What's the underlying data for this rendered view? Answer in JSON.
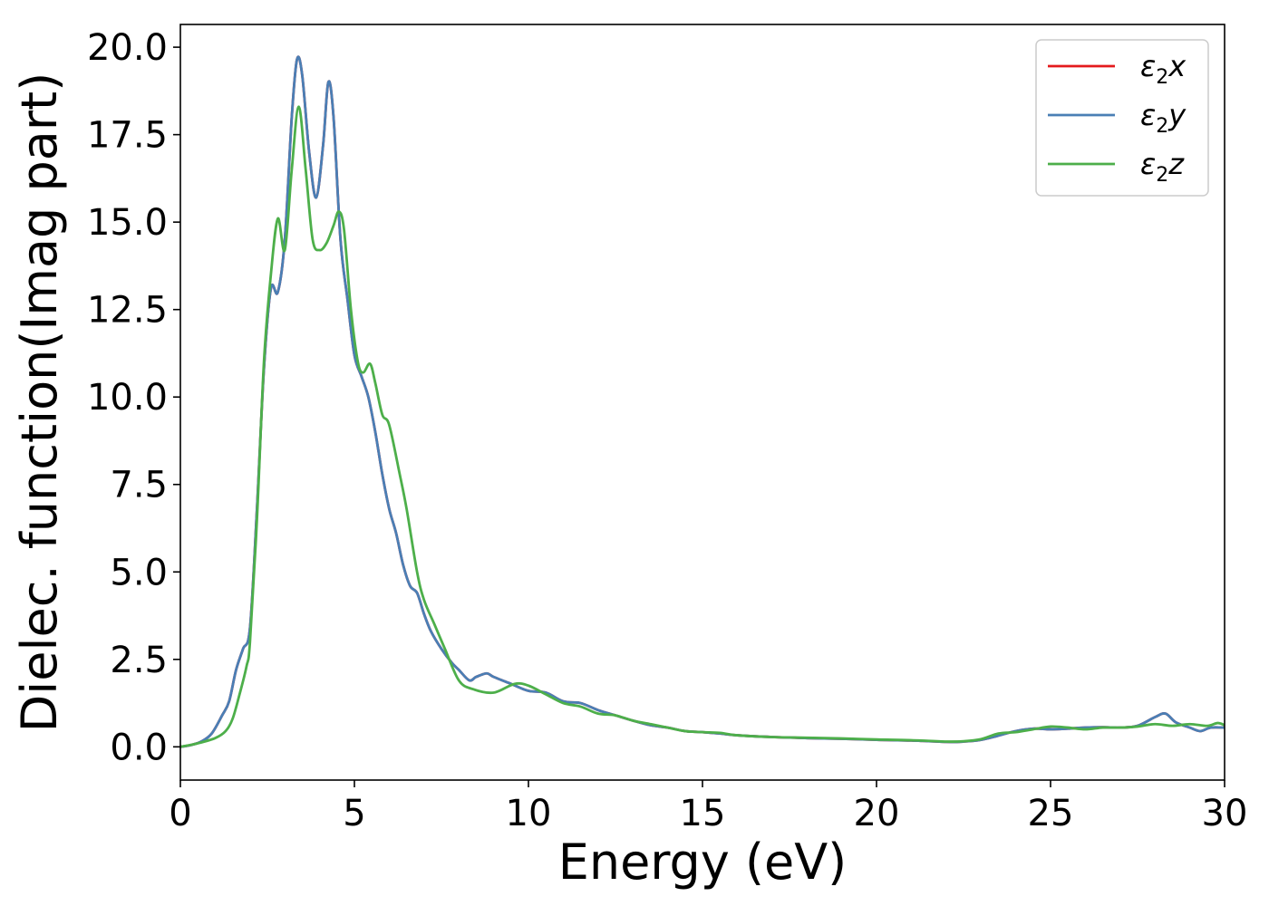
{
  "chart_data": {
    "type": "line",
    "title": "",
    "xlabel": "Energy (eV)",
    "ylabel": "Dielec. function(Imag part)",
    "xlim": [
      0,
      30
    ],
    "ylim": [
      -0.95,
      20.65
    ],
    "xticks": [
      0,
      5,
      10,
      15,
      20,
      25,
      30
    ],
    "xtick_labels": [
      "0",
      "5",
      "10",
      "15",
      "20",
      "25",
      "30"
    ],
    "yticks": [
      0,
      2.5,
      5,
      7.5,
      10,
      12.5,
      15,
      17.5,
      20
    ],
    "ytick_labels": [
      "0.0",
      "2.5",
      "5.0",
      "7.5",
      "10.0",
      "12.5",
      "15.0",
      "17.5",
      "20.0"
    ],
    "grid": false,
    "legend_position": "top-right",
    "series": [
      {
        "name": "ε2x",
        "legend_symbol": "ε",
        "legend_sub": "2",
        "legend_var": "x",
        "color": "#e41a1c",
        "points": [
          [
            0,
            0
          ],
          [
            0.3,
            0.05
          ],
          [
            0.6,
            0.15
          ],
          [
            0.9,
            0.38
          ],
          [
            1.2,
            0.9
          ],
          [
            1.4,
            1.3
          ],
          [
            1.6,
            2.2
          ],
          [
            1.8,
            2.8
          ],
          [
            2.0,
            3.4
          ],
          [
            2.2,
            6.8
          ],
          [
            2.4,
            10.8
          ],
          [
            2.6,
            13.1
          ],
          [
            2.8,
            13.0
          ],
          [
            3.0,
            14.5
          ],
          [
            3.2,
            18.0
          ],
          [
            3.35,
            19.65
          ],
          [
            3.5,
            19.2
          ],
          [
            3.7,
            17.0
          ],
          [
            3.9,
            15.7
          ],
          [
            4.1,
            17.2
          ],
          [
            4.25,
            19.0
          ],
          [
            4.4,
            18.0
          ],
          [
            4.6,
            14.5
          ],
          [
            4.8,
            12.8
          ],
          [
            5.0,
            11.2
          ],
          [
            5.2,
            10.6
          ],
          [
            5.4,
            10.0
          ],
          [
            5.6,
            9.0
          ],
          [
            5.8,
            7.8
          ],
          [
            6.0,
            6.8
          ],
          [
            6.2,
            6.1
          ],
          [
            6.4,
            5.2
          ],
          [
            6.6,
            4.6
          ],
          [
            6.8,
            4.4
          ],
          [
            7.0,
            3.8
          ],
          [
            7.2,
            3.3
          ],
          [
            7.5,
            2.8
          ],
          [
            7.8,
            2.4
          ],
          [
            8.0,
            2.2
          ],
          [
            8.3,
            1.9
          ],
          [
            8.5,
            2.0
          ],
          [
            8.8,
            2.1
          ],
          [
            9.0,
            2.0
          ],
          [
            9.5,
            1.8
          ],
          [
            10.0,
            1.6
          ],
          [
            10.5,
            1.55
          ],
          [
            11.0,
            1.3
          ],
          [
            11.5,
            1.25
          ],
          [
            12.0,
            1.05
          ],
          [
            12.5,
            0.9
          ],
          [
            13.0,
            0.75
          ],
          [
            13.5,
            0.62
          ],
          [
            14.0,
            0.55
          ],
          [
            14.5,
            0.45
          ],
          [
            15.0,
            0.42
          ],
          [
            15.5,
            0.38
          ],
          [
            16.0,
            0.33
          ],
          [
            17.0,
            0.28
          ],
          [
            18.0,
            0.25
          ],
          [
            19.0,
            0.23
          ],
          [
            20.0,
            0.2
          ],
          [
            21.0,
            0.18
          ],
          [
            22.0,
            0.14
          ],
          [
            22.5,
            0.15
          ],
          [
            23.0,
            0.2
          ],
          [
            23.5,
            0.32
          ],
          [
            24.0,
            0.45
          ],
          [
            24.5,
            0.52
          ],
          [
            25.0,
            0.5
          ],
          [
            25.5,
            0.52
          ],
          [
            26.0,
            0.55
          ],
          [
            26.5,
            0.56
          ],
          [
            27.0,
            0.55
          ],
          [
            27.5,
            0.6
          ],
          [
            28.0,
            0.85
          ],
          [
            28.3,
            0.95
          ],
          [
            28.6,
            0.7
          ],
          [
            29.0,
            0.55
          ],
          [
            29.3,
            0.45
          ],
          [
            29.6,
            0.55
          ],
          [
            30.0,
            0.55
          ]
        ]
      },
      {
        "name": "ε2y",
        "legend_symbol": "ε",
        "legend_sub": "2",
        "legend_var": "y",
        "color": "#4a7fb5",
        "points": [
          [
            0,
            0
          ],
          [
            0.3,
            0.05
          ],
          [
            0.6,
            0.15
          ],
          [
            0.9,
            0.38
          ],
          [
            1.2,
            0.9
          ],
          [
            1.4,
            1.3
          ],
          [
            1.6,
            2.2
          ],
          [
            1.8,
            2.8
          ],
          [
            2.0,
            3.4
          ],
          [
            2.2,
            6.8
          ],
          [
            2.4,
            10.8
          ],
          [
            2.6,
            13.1
          ],
          [
            2.8,
            13.0
          ],
          [
            3.0,
            14.5
          ],
          [
            3.2,
            18.0
          ],
          [
            3.35,
            19.65
          ],
          [
            3.5,
            19.2
          ],
          [
            3.7,
            17.0
          ],
          [
            3.9,
            15.7
          ],
          [
            4.1,
            17.2
          ],
          [
            4.25,
            19.0
          ],
          [
            4.4,
            18.0
          ],
          [
            4.6,
            14.5
          ],
          [
            4.8,
            12.8
          ],
          [
            5.0,
            11.2
          ],
          [
            5.2,
            10.6
          ],
          [
            5.4,
            10.0
          ],
          [
            5.6,
            9.0
          ],
          [
            5.8,
            7.8
          ],
          [
            6.0,
            6.8
          ],
          [
            6.2,
            6.1
          ],
          [
            6.4,
            5.2
          ],
          [
            6.6,
            4.6
          ],
          [
            6.8,
            4.4
          ],
          [
            7.0,
            3.8
          ],
          [
            7.2,
            3.3
          ],
          [
            7.5,
            2.8
          ],
          [
            7.8,
            2.4
          ],
          [
            8.0,
            2.2
          ],
          [
            8.3,
            1.9
          ],
          [
            8.5,
            2.0
          ],
          [
            8.8,
            2.1
          ],
          [
            9.0,
            2.0
          ],
          [
            9.5,
            1.8
          ],
          [
            10.0,
            1.6
          ],
          [
            10.5,
            1.55
          ],
          [
            11.0,
            1.3
          ],
          [
            11.5,
            1.25
          ],
          [
            12.0,
            1.05
          ],
          [
            12.5,
            0.9
          ],
          [
            13.0,
            0.75
          ],
          [
            13.5,
            0.62
          ],
          [
            14.0,
            0.55
          ],
          [
            14.5,
            0.45
          ],
          [
            15.0,
            0.42
          ],
          [
            15.5,
            0.38
          ],
          [
            16.0,
            0.33
          ],
          [
            17.0,
            0.28
          ],
          [
            18.0,
            0.25
          ],
          [
            19.0,
            0.23
          ],
          [
            20.0,
            0.2
          ],
          [
            21.0,
            0.18
          ],
          [
            22.0,
            0.14
          ],
          [
            22.5,
            0.15
          ],
          [
            23.0,
            0.2
          ],
          [
            23.5,
            0.32
          ],
          [
            24.0,
            0.45
          ],
          [
            24.5,
            0.52
          ],
          [
            25.0,
            0.5
          ],
          [
            25.5,
            0.52
          ],
          [
            26.0,
            0.55
          ],
          [
            26.5,
            0.56
          ],
          [
            27.0,
            0.55
          ],
          [
            27.5,
            0.6
          ],
          [
            28.0,
            0.85
          ],
          [
            28.3,
            0.95
          ],
          [
            28.6,
            0.7
          ],
          [
            29.0,
            0.55
          ],
          [
            29.3,
            0.45
          ],
          [
            29.6,
            0.55
          ],
          [
            30.0,
            0.55
          ]
        ]
      },
      {
        "name": "ε2z",
        "legend_symbol": "ε",
        "legend_sub": "2",
        "legend_var": "z",
        "color": "#4daf4a",
        "points": [
          [
            0,
            0
          ],
          [
            0.5,
            0.1
          ],
          [
            1.0,
            0.25
          ],
          [
            1.3,
            0.45
          ],
          [
            1.5,
            0.8
          ],
          [
            1.7,
            1.5
          ],
          [
            1.9,
            2.3
          ],
          [
            2.0,
            3.0
          ],
          [
            2.2,
            6.5
          ],
          [
            2.4,
            11.0
          ],
          [
            2.6,
            13.5
          ],
          [
            2.8,
            15.1
          ],
          [
            3.0,
            14.2
          ],
          [
            3.2,
            16.5
          ],
          [
            3.4,
            18.3
          ],
          [
            3.6,
            16.5
          ],
          [
            3.8,
            14.5
          ],
          [
            4.0,
            14.2
          ],
          [
            4.2,
            14.4
          ],
          [
            4.4,
            14.9
          ],
          [
            4.55,
            15.3
          ],
          [
            4.7,
            14.8
          ],
          [
            4.9,
            12.5
          ],
          [
            5.1,
            11.0
          ],
          [
            5.25,
            10.7
          ],
          [
            5.45,
            10.95
          ],
          [
            5.6,
            10.4
          ],
          [
            5.8,
            9.5
          ],
          [
            6.0,
            9.2
          ],
          [
            6.3,
            7.8
          ],
          [
            6.5,
            6.8
          ],
          [
            6.8,
            5.0
          ],
          [
            7.0,
            4.2
          ],
          [
            7.3,
            3.5
          ],
          [
            7.6,
            2.8
          ],
          [
            8.0,
            1.9
          ],
          [
            8.4,
            1.65
          ],
          [
            9.0,
            1.55
          ],
          [
            9.6,
            1.8
          ],
          [
            10.0,
            1.75
          ],
          [
            10.5,
            1.5
          ],
          [
            11.0,
            1.25
          ],
          [
            11.5,
            1.15
          ],
          [
            12.0,
            0.95
          ],
          [
            12.5,
            0.9
          ],
          [
            13.0,
            0.75
          ],
          [
            13.5,
            0.65
          ],
          [
            14.0,
            0.55
          ],
          [
            14.5,
            0.45
          ],
          [
            15.0,
            0.42
          ],
          [
            15.5,
            0.4
          ],
          [
            16.0,
            0.33
          ],
          [
            17.0,
            0.28
          ],
          [
            18.0,
            0.26
          ],
          [
            19.0,
            0.24
          ],
          [
            20.0,
            0.21
          ],
          [
            21.0,
            0.19
          ],
          [
            22.0,
            0.15
          ],
          [
            22.5,
            0.16
          ],
          [
            23.0,
            0.22
          ],
          [
            23.5,
            0.38
          ],
          [
            24.0,
            0.42
          ],
          [
            24.5,
            0.5
          ],
          [
            25.0,
            0.58
          ],
          [
            25.5,
            0.55
          ],
          [
            26.0,
            0.5
          ],
          [
            26.5,
            0.55
          ],
          [
            27.0,
            0.55
          ],
          [
            27.5,
            0.58
          ],
          [
            28.0,
            0.65
          ],
          [
            28.5,
            0.6
          ],
          [
            29.0,
            0.65
          ],
          [
            29.5,
            0.6
          ],
          [
            29.8,
            0.68
          ],
          [
            30.0,
            0.62
          ]
        ]
      }
    ]
  }
}
